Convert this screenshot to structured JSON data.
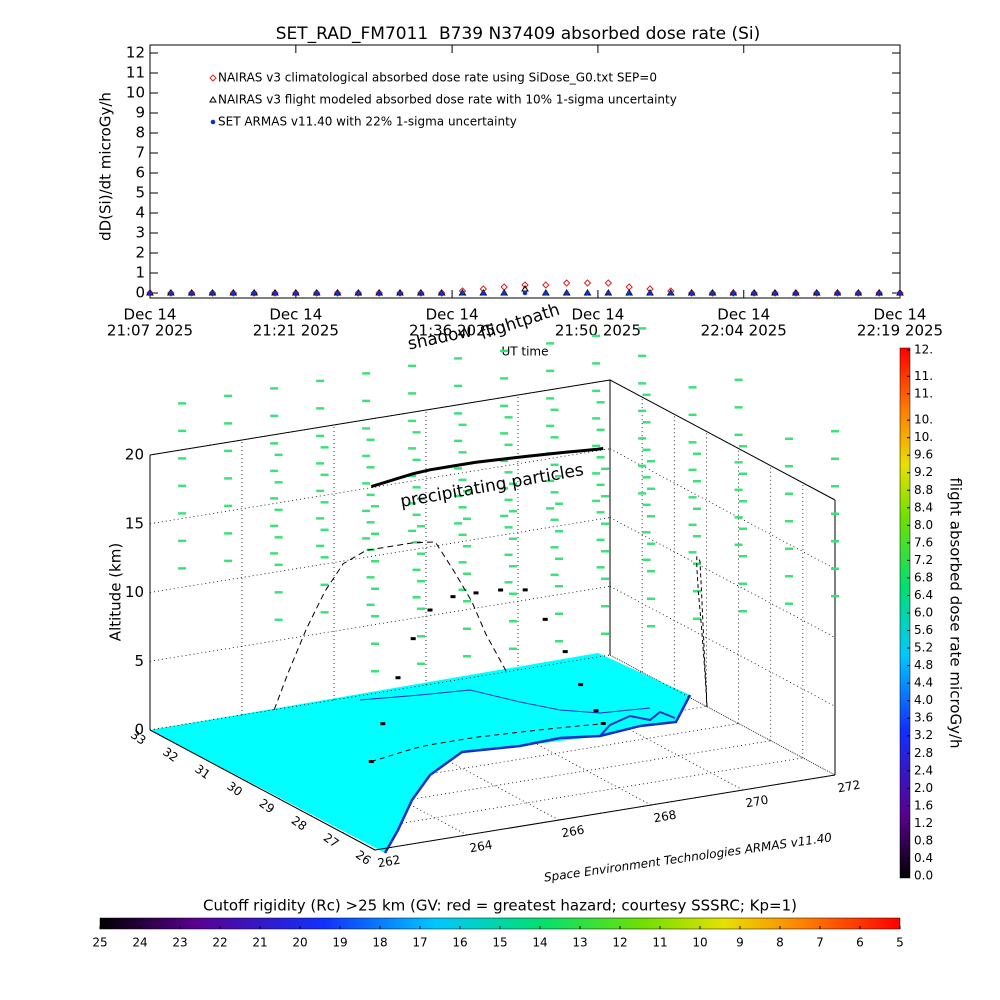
{
  "chart_data": [
    {
      "type": "scatter",
      "title": "SET_RAD_FM7011  B739 N37409 absorbed dose rate (Si)",
      "xlabel": "UT time",
      "ylabel": "dD(Si)/dt microGy/h",
      "x": [
        "2025-12-14T21:07",
        "2025-12-14T21:09",
        "2025-12-14T21:11",
        "2025-12-14T21:13",
        "2025-12-14T21:15",
        "2025-12-14T21:17",
        "2025-12-14T21:19",
        "2025-12-14T21:21",
        "2025-12-14T21:23",
        "2025-12-14T21:25",
        "2025-12-14T21:27",
        "2025-12-14T21:29",
        "2025-12-14T21:31",
        "2025-12-14T21:33",
        "2025-12-14T21:35",
        "2025-12-14T21:37",
        "2025-12-14T21:39",
        "2025-12-14T21:41",
        "2025-12-14T21:43",
        "2025-12-14T21:45",
        "2025-12-14T21:47",
        "2025-12-14T21:49",
        "2025-12-14T21:51",
        "2025-12-14T21:53",
        "2025-12-14T21:55",
        "2025-12-14T21:57",
        "2025-12-14T21:59",
        "2025-12-14T22:01",
        "2025-12-14T22:03",
        "2025-12-14T22:05",
        "2025-12-14T22:07",
        "2025-12-14T22:09",
        "2025-12-14T22:11",
        "2025-12-14T22:13",
        "2025-12-14T22:15",
        "2025-12-14T22:17",
        "2025-12-14T22:19"
      ],
      "xlim": [
        "2025-12-14T21:07",
        "2025-12-14T22:19"
      ],
      "xticks": [
        {
          "value": "2025-12-14T21:07",
          "label": [
            "Dec 14",
            "21:07 2025"
          ]
        },
        {
          "value": "2025-12-14T21:21",
          "label": [
            "Dec 14",
            "21:21 2025"
          ]
        },
        {
          "value": "2025-12-14T21:36",
          "label": [
            "Dec 14",
            "21:36 2025"
          ]
        },
        {
          "value": "2025-12-14T21:50",
          "label": [
            "Dec 14",
            "21:50 2025"
          ]
        },
        {
          "value": "2025-12-14T22:04",
          "label": [
            "Dec 14",
            "22:04 2025"
          ]
        },
        {
          "value": "2025-12-14T22:19",
          "label": [
            "Dec 14",
            "22:19 2025"
          ]
        }
      ],
      "ylim": [
        -0.25,
        12.4
      ],
      "yticks": [
        0,
        1,
        2,
        3,
        4,
        5,
        6,
        7,
        8,
        9,
        10,
        11,
        12
      ],
      "legend": "upper left",
      "series": [
        {
          "name": "NAIRAS v3 climatological absorbed dose rate using SiDose_G0.txt SEP=0",
          "color": "#e02020",
          "marker": "diamond",
          "values": [
            0,
            0,
            0,
            0,
            0,
            0,
            0,
            0,
            0,
            0,
            0,
            0,
            0,
            0,
            0,
            0.1,
            0.2,
            0.3,
            0.4,
            0.4,
            0.5,
            0.5,
            0.5,
            0.3,
            0.2,
            0.1,
            0,
            0,
            0,
            0,
            0,
            0,
            0,
            0,
            0,
            0,
            0
          ]
        },
        {
          "name": "NAIRAS v3 flight modeled absorbed dose rate with 10% 1-sigma uncertainty",
          "color": "#000000",
          "marker": "triangle",
          "values": [
            0,
            0,
            0,
            0,
            0,
            0,
            0,
            0,
            0,
            0,
            0,
            0,
            0,
            0,
            0,
            0,
            0,
            0,
            0.2,
            0,
            0,
            0,
            0,
            0,
            0,
            0,
            0,
            0,
            0,
            0,
            0,
            0,
            0,
            0,
            0,
            0,
            0
          ]
        },
        {
          "name": "SET ARMAS v11.40 with 22% 1-sigma uncertainty",
          "color": "#1030c0",
          "marker": "circle",
          "values": [
            0,
            0,
            0,
            0,
            0,
            0,
            0,
            0,
            0,
            0,
            0,
            0,
            0,
            0,
            0,
            0,
            0,
            0,
            0,
            0,
            0,
            0,
            0,
            0,
            0,
            0,
            0,
            0,
            0,
            0,
            0,
            0,
            0,
            0,
            0,
            0,
            0
          ]
        }
      ]
    },
    {
      "type": "scatter3d",
      "zlabel": "Altitude (km)",
      "xlim": [
        262,
        272
      ],
      "ylim": [
        26,
        33
      ],
      "zlim": [
        0,
        20
      ],
      "xticks": [
        262,
        264,
        266,
        268,
        270,
        272
      ],
      "yticks": [
        26,
        27,
        28,
        29,
        30,
        31,
        32,
        33
      ],
      "zticks": [
        0,
        5,
        10,
        15,
        20
      ],
      "annotations": [
        "shadow",
        "flightpath",
        "precipitating particles",
        "Space Environment Technologies ARMAS v11.40"
      ],
      "track": {
        "color": "#000000",
        "lon": [
          264.7,
          265.0,
          265.4,
          265.8,
          266.2,
          266.7,
          267.2,
          267.7,
          268.2,
          268.6,
          269.0,
          269.3,
          269.6,
          269.75
        ],
        "lat": [
          29.98,
          30.05,
          30.15,
          30.25,
          30.3,
          30.3,
          30.3,
          30.25,
          30.2,
          30.15,
          30.1,
          30.05,
          30.0,
          29.99
        ],
        "alt": [
          0,
          2.5,
          5.5,
          8,
          9.8,
          10.5,
          10.5,
          10.5,
          10.3,
          8,
          5.5,
          3,
          1,
          0
        ]
      },
      "particles": {
        "color": "#3ee07a",
        "lon": [
          262,
          263,
          264,
          265,
          266,
          267,
          268,
          269,
          270,
          271,
          272
        ],
        "lat": [
          32,
          29,
          26
        ],
        "alt": [
          13,
          15,
          17,
          19,
          21,
          23,
          25
        ]
      }
    },
    {
      "type": "colorbar",
      "label": "flight absorbed dose rate microGy/h",
      "ylim": [
        0,
        12
      ],
      "yticks": [
        {
          "value": 0,
          "label": "0.0"
        },
        0.4,
        0.8,
        1.2,
        1.6,
        {
          "value": 2,
          "label": "2.0"
        },
        2.4,
        2.8,
        3.2,
        3.6,
        {
          "value": 4,
          "label": "4.0"
        },
        4.4,
        4.8,
        5.2,
        5.6,
        {
          "value": 6,
          "label": "6.0"
        },
        6.4,
        6.8,
        7.2,
        7.6,
        {
          "value": 8,
          "label": "8.0"
        },
        8.4,
        8.8,
        9.2,
        9.6,
        {
          "value": 10,
          "label": "10."
        },
        {
          "value": 10.4,
          "label": "10."
        },
        {
          "value": 11,
          "label": "11."
        },
        {
          "value": 11.4,
          "label": "11."
        },
        {
          "value": 12,
          "label": "12."
        }
      ]
    },
    {
      "type": "colorbar",
      "title": "Cutoff rigidity (Rc) >25 km (GV: red = greatest hazard; courtesy SSSRC; Kp=1)",
      "xlim": [
        25,
        5
      ],
      "xticks": [
        25,
        24,
        23,
        22,
        21,
        20,
        19,
        18,
        17,
        16,
        15,
        14,
        13,
        12,
        11,
        10,
        9,
        8,
        7,
        6,
        5
      ]
    }
  ]
}
